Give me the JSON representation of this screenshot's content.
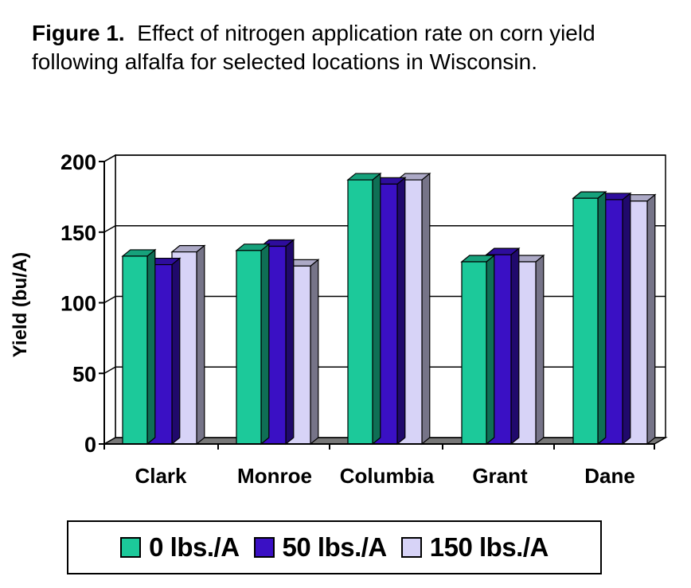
{
  "caption": {
    "label": "Figure 1.",
    "text": "Effect of nitrogen application rate on corn yield following alfalfa for selected locations in Wisconsin."
  },
  "colors": {
    "series_0": "#1cc99a",
    "series_50": "#3a10c4",
    "series_150": "#d7d3f7",
    "floor": "#777777",
    "back_wall": "#ffffff",
    "gridline": "#000000"
  },
  "chart_data": {
    "type": "bar",
    "style": "3d-clustered",
    "title": "",
    "xlabel": "",
    "ylabel": "Yield (bu/A)",
    "ylim": [
      0,
      200
    ],
    "yticks": [
      0,
      50,
      100,
      150,
      200
    ],
    "grid": true,
    "legend_position": "bottom",
    "categories": [
      "Clark",
      "Monroe",
      "Columbia",
      "Grant",
      "Dane"
    ],
    "series": [
      {
        "name": "0 lbs./A",
        "values": [
          133,
          137,
          187,
          129,
          174
        ]
      },
      {
        "name": "50 lbs./A",
        "values": [
          127,
          140,
          184,
          134,
          173
        ]
      },
      {
        "name": "150 lbs./A",
        "values": [
          136,
          126,
          187,
          129,
          172
        ]
      }
    ]
  }
}
